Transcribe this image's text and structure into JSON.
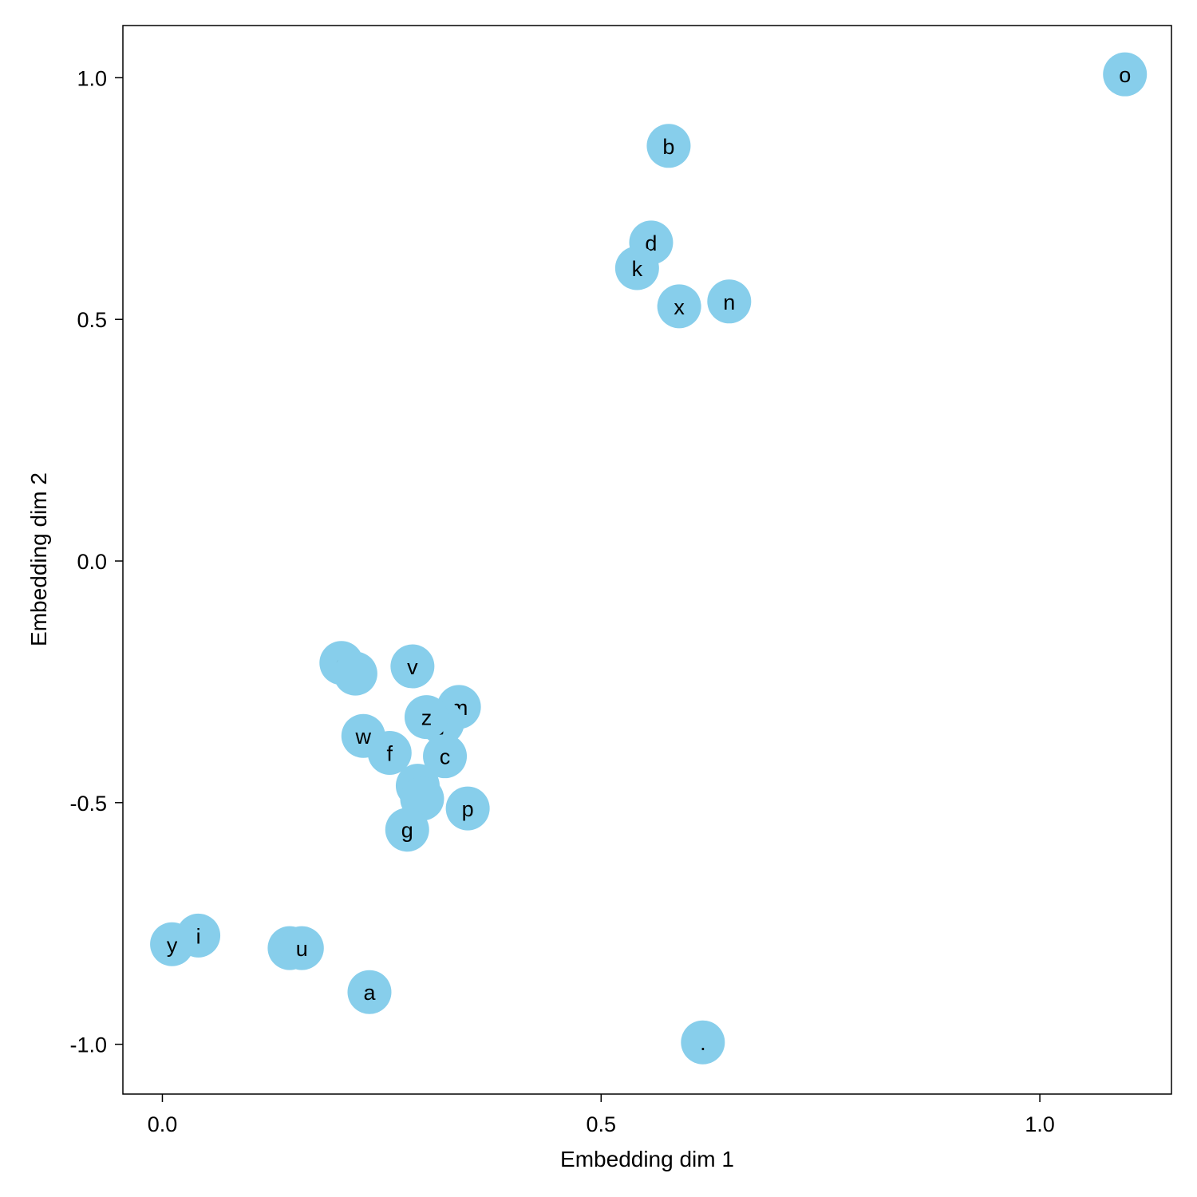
{
  "chart_data": {
    "type": "scatter",
    "xlabel": "Embedding dim 1",
    "ylabel": "Embedding dim 2",
    "xlim": [
      -0.045,
      1.15
    ],
    "ylim": [
      -1.103,
      1.108
    ],
    "xticks": [
      {
        "value": 0.0,
        "label": "0.0"
      },
      {
        "value": 0.5,
        "label": "0.5"
      },
      {
        "value": 1.0,
        "label": "1.0"
      }
    ],
    "yticks": [
      {
        "value": 1.0,
        "label": "1.0"
      },
      {
        "value": 0.5,
        "label": "0.5"
      },
      {
        "value": 0.0,
        "label": "0.0"
      },
      {
        "value": -0.5,
        "label": "-0.5"
      },
      {
        "value": -1.0,
        "label": "-1.0"
      }
    ],
    "grid": false,
    "marker_color": "#87ceeb",
    "points": [
      {
        "label": "o",
        "x": 1.097,
        "y": 1.007
      },
      {
        "label": "b",
        "x": 0.577,
        "y": 0.859
      },
      {
        "label": "d",
        "x": 0.557,
        "y": 0.659
      },
      {
        "label": "k",
        "x": 0.541,
        "y": 0.606
      },
      {
        "label": "x",
        "x": 0.589,
        "y": 0.527
      },
      {
        "label": "n",
        "x": 0.646,
        "y": 0.537
      },
      {
        "label": "q",
        "x": 0.204,
        "y": -0.211
      },
      {
        "label": "",
        "x": 0.22,
        "y": -0.233
      },
      {
        "label": "v",
        "x": 0.285,
        "y": -0.218
      },
      {
        "label": "m",
        "x": 0.338,
        "y": -0.302
      },
      {
        "label": "j",
        "x": 0.319,
        "y": -0.335
      },
      {
        "label": "z",
        "x": 0.301,
        "y": -0.323
      },
      {
        "label": "w",
        "x": 0.229,
        "y": -0.362
      },
      {
        "label": "f",
        "x": 0.259,
        "y": -0.397
      },
      {
        "label": "c",
        "x": 0.322,
        "y": -0.404
      },
      {
        "label": "t",
        "x": 0.291,
        "y": -0.465
      },
      {
        "label": "",
        "x": 0.296,
        "y": -0.492
      },
      {
        "label": "p",
        "x": 0.348,
        "y": -0.512
      },
      {
        "label": "g",
        "x": 0.279,
        "y": -0.556
      },
      {
        "label": "y",
        "x": 0.011,
        "y": -0.793
      },
      {
        "label": "i",
        "x": 0.041,
        "y": -0.775
      },
      {
        "label": "",
        "x": 0.145,
        "y": -0.801
      },
      {
        "label": "u",
        "x": 0.159,
        "y": -0.801
      },
      {
        "label": "a",
        "x": 0.236,
        "y": -0.892
      },
      {
        "label": ".",
        "x": 0.616,
        "y": -0.996
      }
    ]
  }
}
